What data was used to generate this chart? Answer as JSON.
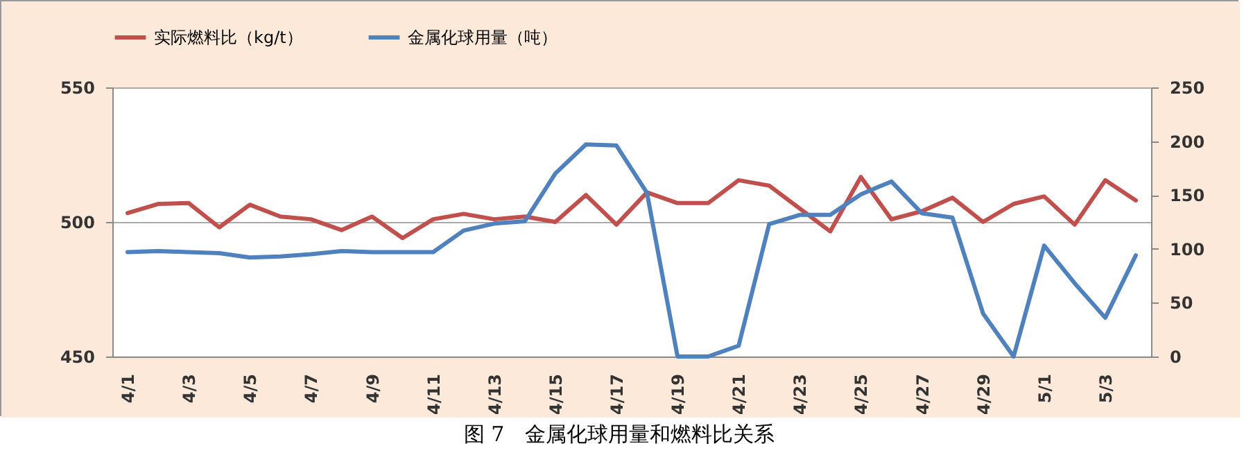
{
  "chart_data": {
    "type": "line",
    "categories": [
      "4/1",
      null,
      "4/3",
      null,
      "4/5",
      null,
      "4/7",
      null,
      "4/9",
      null,
      "4/11",
      null,
      "4/13",
      null,
      "4/15",
      null,
      "4/17",
      null,
      "4/19",
      null,
      "4/21",
      null,
      "4/23",
      null,
      "4/25",
      null,
      "4/27",
      null,
      "4/29",
      null,
      "5/1",
      null,
      "5/3",
      null
    ],
    "series": [
      {
        "name": "实际燃料比（kg/t）",
        "color": "#c0504d",
        "values": [
          503.3,
          506.7,
          507,
          498,
          506.4,
          502,
          501,
          497,
          502,
          494,
          501,
          503,
          501,
          502,
          500,
          510,
          499,
          511,
          507,
          507,
          515.5,
          513.5,
          505,
          496.5,
          516.7,
          501,
          504,
          509,
          500,
          506.7,
          509.5,
          499,
          515.5,
          508
        ]
      },
      {
        "name": "金属化球用量（吨）",
        "color": "#4f81bd",
        "axis": "y2",
        "values": [
          97,
          98,
          97,
          96,
          92,
          93,
          95,
          98,
          97,
          97,
          97,
          117,
          123.5,
          125.6,
          170,
          197,
          196,
          152,
          0,
          0,
          10,
          123,
          131.6,
          131.6,
          150.6,
          162.6,
          133,
          129,
          40,
          0,
          103,
          68,
          36,
          94
        ]
      }
    ],
    "ylim": [
      450,
      550
    ],
    "yticks": [
      450,
      500,
      550
    ],
    "y2lim": [
      0,
      250
    ],
    "y2ticks": [
      0,
      50,
      100,
      150,
      200,
      250
    ],
    "grid": "y",
    "legend": "top",
    "annotations": [
      "图 7　金属化球用量和燃料比关系"
    ]
  }
}
